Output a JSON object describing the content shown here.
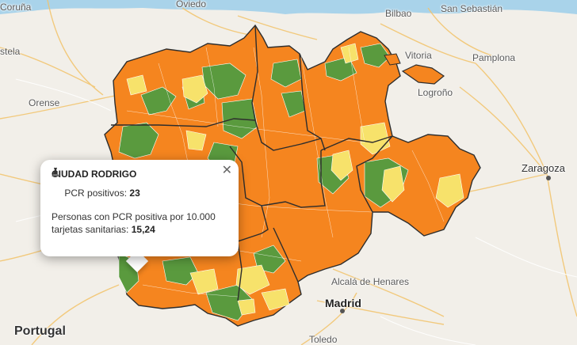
{
  "labels": {
    "oviedo": "Oviedo",
    "bilbao": "Bilbao",
    "san_sebastian": "San Sebastián",
    "coruna": "Coruña",
    "stela": "stela",
    "vitoria": "Vitoria",
    "pamplona": "Pamplona",
    "orense": "Orense",
    "logrono": "Logroño",
    "zaragoza": "Zaragoza",
    "portugal": "Portugal",
    "alcala": "Alcalá de Henares",
    "madrid": "Madrid",
    "toledo": "Toledo"
  },
  "popup": {
    "title": "CIUDAD RODRIGO",
    "pcr_icon": "flask-icon",
    "pcr_label": "PCR positivos:",
    "pcr_value": "23",
    "rate_label_line1": "Personas con PCR positiva por 10.000",
    "rate_label_line2": "tarjetas sanitarias:",
    "rate_value": "15,24",
    "close_icon": "close-icon",
    "close_glyph": "✕"
  },
  "colors": {
    "orange": "#f5851f",
    "green": "#5a9a3e",
    "yellow": "#f7e26b",
    "sea": "#a9d3ea",
    "land": "#f2efe9"
  }
}
